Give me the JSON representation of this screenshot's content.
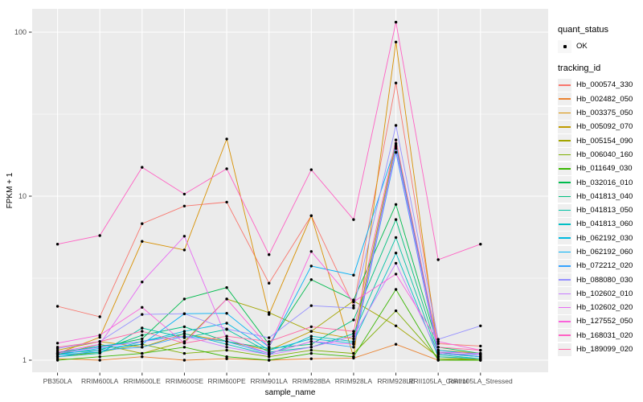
{
  "figure": {
    "panel_background": "#EBEBEB",
    "grid_color": "#FFFFFF",
    "point_color": "#000000",
    "tick_label_color": "#4D4D4D",
    "axis_title_color": "#000000",
    "legend_key_background": "#EFEFEF"
  },
  "legend": {
    "quant_status_title": "quant_status",
    "quant_status_items": [
      "OK"
    ],
    "tracking_id_title": "tracking_id"
  },
  "chart_data": {
    "type": "line",
    "title": "",
    "xlabel": "sample_name",
    "ylabel": "FPKM + 1",
    "y_scale": "log10",
    "y_ticks": [
      1,
      10,
      100
    ],
    "y_minor_ticks": [
      3.1623,
      31.623
    ],
    "ylim": [
      0.85,
      138
    ],
    "grid": true,
    "legend_position": "right",
    "point_marker": "black dot (quant_status OK)",
    "categories": [
      "PB350LA",
      "RRIM600LA",
      "RRIM600LE",
      "RRIM600SE",
      "RRIM600PE",
      "RRIM901LA",
      "RRIM928BA",
      "RRIM928LA",
      "RRIM928LE",
      "RRII105LA_Control",
      "RRII105LA_Stressed"
    ],
    "series": [
      {
        "name": "Hb_000574_330",
        "color": "#F8766D",
        "values": [
          2.13,
          1.84,
          6.8,
          8.7,
          9.2,
          2.95,
          7.6,
          2.15,
          49,
          1.26,
          1.22
        ]
      },
      {
        "name": "Hb_002482_050",
        "color": "#EA8331",
        "values": [
          1.02,
          1.0,
          1.05,
          1.0,
          1.02,
          1.0,
          1.02,
          1.03,
          1.25,
          1.0,
          1.02
        ]
      },
      {
        "name": "Hb_003375_050",
        "color": "#D89000",
        "values": [
          1.1,
          1.38,
          5.3,
          4.7,
          22.3,
          1.9,
          7.6,
          1.05,
          87,
          1.1,
          1.05
        ]
      },
      {
        "name": "Hb_005092_070",
        "color": "#C09B00",
        "values": [
          1.15,
          1.3,
          1.2,
          1.45,
          1.3,
          1.15,
          1.5,
          1.35,
          21,
          1.15,
          1.1
        ]
      },
      {
        "name": "Hb_005154_090",
        "color": "#A3A500",
        "values": [
          1.08,
          1.25,
          1.1,
          1.3,
          2.36,
          1.95,
          1.5,
          2.3,
          1.62,
          1.05,
          1.0
        ]
      },
      {
        "name": "Hb_006040_160",
        "color": "#7CAE00",
        "values": [
          1.05,
          1.12,
          1.25,
          1.1,
          1.15,
          1.05,
          1.15,
          1.1,
          2.0,
          1.02,
          1.0
        ]
      },
      {
        "name": "Hb_011649_030",
        "color": "#39B600",
        "values": [
          1.0,
          1.05,
          1.1,
          1.2,
          1.05,
          1.0,
          1.1,
          1.05,
          2.7,
          1.0,
          1.0
        ]
      },
      {
        "name": "Hb_032016_010",
        "color": "#00BB4E",
        "values": [
          1.12,
          1.2,
          1.35,
          2.36,
          2.77,
          1.25,
          3.1,
          2.33,
          8.9,
          1.2,
          1.1
        ]
      },
      {
        "name": "Hb_041813_040",
        "color": "#00BF7D",
        "values": [
          1.1,
          1.15,
          1.42,
          1.6,
          1.3,
          1.18,
          1.25,
          1.76,
          7.2,
          1.12,
          1.05
        ]
      },
      {
        "name": "Hb_041813_050",
        "color": "#00C1A3",
        "values": [
          1.05,
          1.1,
          1.57,
          1.37,
          1.54,
          1.12,
          1.2,
          1.45,
          5.6,
          1.08,
          1.02
        ]
      },
      {
        "name": "Hb_041813_060",
        "color": "#00BFC4",
        "values": [
          1.08,
          1.12,
          1.3,
          1.45,
          1.25,
          1.08,
          1.4,
          1.3,
          4.5,
          1.05,
          1.02
        ]
      },
      {
        "name": "Hb_062192_030",
        "color": "#00BAE0",
        "values": [
          1.1,
          1.22,
          1.3,
          1.5,
          1.68,
          1.15,
          1.35,
          1.27,
          20,
          1.1,
          1.05
        ]
      },
      {
        "name": "Hb_062192_060",
        "color": "#00B0F6",
        "values": [
          1.08,
          1.18,
          1.25,
          1.92,
          1.93,
          1.2,
          3.75,
          3.3,
          20.5,
          1.15,
          1.08
        ]
      },
      {
        "name": "Hb_072212_020",
        "color": "#35A2FF",
        "values": [
          1.05,
          1.15,
          1.2,
          1.4,
          1.3,
          1.1,
          1.3,
          1.2,
          18.5,
          1.1,
          1.05
        ]
      },
      {
        "name": "Hb_088080_030",
        "color": "#9590FF",
        "values": [
          1.18,
          1.3,
          1.9,
          1.92,
          1.55,
          1.37,
          2.15,
          2.08,
          27,
          1.34,
          1.62
        ]
      },
      {
        "name": "Hb_102602_010",
        "color": "#C77CFF",
        "values": [
          1.1,
          1.2,
          1.3,
          1.4,
          1.2,
          1.08,
          1.2,
          1.4,
          3.9,
          1.1,
          1.08
        ]
      },
      {
        "name": "Hb_102602_020",
        "color": "#E76BF3",
        "values": [
          1.12,
          1.25,
          3.0,
          5.7,
          1.35,
          1.1,
          1.3,
          1.25,
          19.5,
          1.12,
          1.1
        ]
      },
      {
        "name": "Hb_127552_050",
        "color": "#FA62DB",
        "values": [
          1.27,
          1.42,
          2.1,
          1.27,
          2.36,
          1.2,
          4.6,
          2.27,
          3.35,
          1.3,
          1.15
        ]
      },
      {
        "name": "Hb_168031_020",
        "color": "#FF61C3",
        "values": [
          5.1,
          5.75,
          15.0,
          10.3,
          14.7,
          4.4,
          14.5,
          7.2,
          115,
          4.1,
          5.1
        ]
      },
      {
        "name": "Hb_189099_020",
        "color": "#FF67A4",
        "values": [
          1.2,
          1.3,
          1.5,
          1.27,
          1.4,
          1.3,
          1.6,
          1.5,
          22,
          1.2,
          1.15
        ]
      }
    ]
  }
}
